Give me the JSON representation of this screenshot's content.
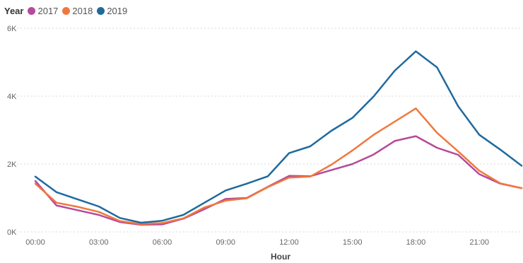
{
  "legend": {
    "title": "Year",
    "items": [
      {
        "label": "2017",
        "color": "#B54A9B"
      },
      {
        "label": "2018",
        "color": "#F0783C"
      },
      {
        "label": "2019",
        "color": "#1F6A9E"
      }
    ]
  },
  "chart_data": {
    "type": "line",
    "xlabel": "Hour",
    "ylabel": "",
    "ylim": [
      0,
      6000
    ],
    "yticks": [
      {
        "value": 0,
        "label": "0K"
      },
      {
        "value": 2000,
        "label": "2K"
      },
      {
        "value": 4000,
        "label": "4K"
      },
      {
        "value": 6000,
        "label": "6K"
      }
    ],
    "xticks": [
      {
        "hour": 0,
        "label": "00:00"
      },
      {
        "hour": 3,
        "label": "03:00"
      },
      {
        "hour": 6,
        "label": "06:00"
      },
      {
        "hour": 9,
        "label": "09:00"
      },
      {
        "hour": 12,
        "label": "12:00"
      },
      {
        "hour": 15,
        "label": "15:00"
      },
      {
        "hour": 18,
        "label": "18:00"
      },
      {
        "hour": 21,
        "label": "21:00"
      }
    ],
    "x": [
      0,
      1,
      2,
      3,
      4,
      5,
      6,
      7,
      8,
      9,
      10,
      11,
      12,
      13,
      14,
      15,
      16,
      17,
      18,
      19,
      20,
      21,
      22,
      23
    ],
    "grid": true,
    "legend_position": "top-left",
    "series": [
      {
        "name": "2017",
        "color": "#B54A9B",
        "values": [
          1500,
          780,
          640,
          500,
          290,
          210,
          220,
          390,
          670,
          970,
          1000,
          1330,
          1650,
          1640,
          1820,
          2000,
          2280,
          2680,
          2820,
          2480,
          2270,
          1700,
          1420,
          1290
        ]
      },
      {
        "name": "2018",
        "color": "#F0783C",
        "values": [
          1420,
          860,
          740,
          590,
          320,
          230,
          260,
          400,
          720,
          920,
          990,
          1320,
          1600,
          1630,
          1980,
          2400,
          2860,
          3250,
          3640,
          2920,
          2370,
          1800,
          1430,
          1290
        ]
      },
      {
        "name": "2019",
        "color": "#1F6A9E",
        "values": [
          1630,
          1170,
          960,
          750,
          410,
          270,
          330,
          500,
          860,
          1220,
          1420,
          1640,
          2320,
          2520,
          2980,
          3360,
          3990,
          4750,
          5320,
          4850,
          3700,
          2860,
          2420,
          1950
        ]
      }
    ]
  }
}
